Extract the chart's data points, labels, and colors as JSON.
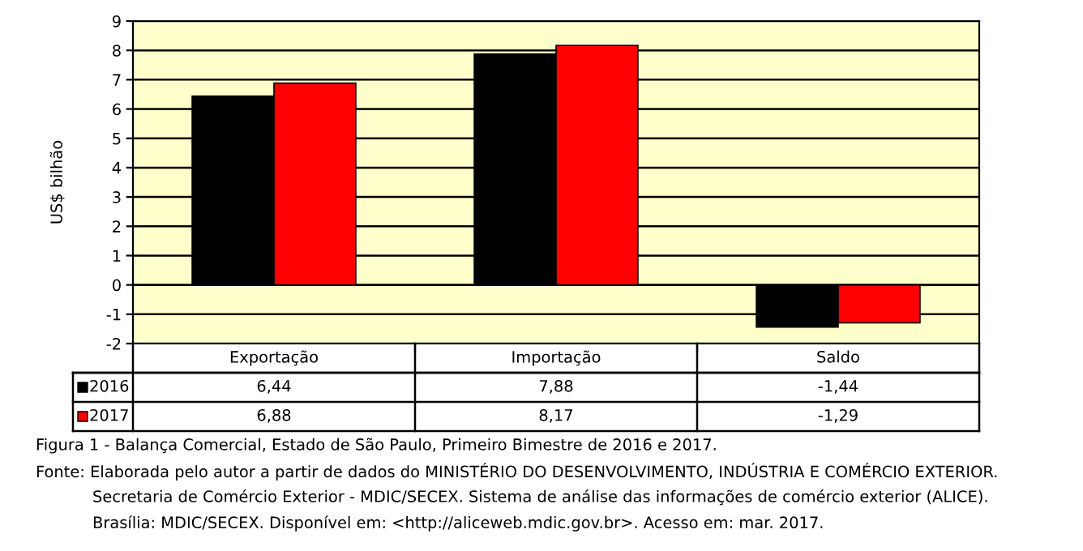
{
  "chart_data": {
    "type": "bar",
    "title": "Figura 1 - Balança Comercial, Estado de São Paulo, Primeiro Bimestre de 2016 e 2017.",
    "ylabel": "US$ bilhão",
    "categories": [
      "Exportação",
      "Importação",
      "Saldo"
    ],
    "series": [
      {
        "name": "2016",
        "color": "#000000",
        "values": [
          6.44,
          7.88,
          -1.44
        ],
        "value_labels": [
          "6,44",
          "7,88",
          "-1,44"
        ]
      },
      {
        "name": "2017",
        "color": "#ff0000",
        "values": [
          6.88,
          8.17,
          -1.29
        ],
        "value_labels": [
          "6,88",
          "8,17",
          "-1,29"
        ]
      }
    ],
    "ylim": [
      -2,
      9
    ],
    "yticks": [
      -2,
      -1,
      0,
      1,
      2,
      3,
      4,
      5,
      6,
      7,
      8,
      9
    ],
    "grid": "y",
    "legend": "bottom left",
    "annotations": [
      "Fonte: Elaborada pelo autor a partir de dados do MINISTÉRIO DO DESENVOLVIMENTO, INDÚSTRIA E COMÉRCIO EXTERIOR.",
      "Secretaria de Comércio Exterior - MDIC/SECEX. Sistema de análise das informações de comércio exterior (ALICE).",
      "Brasília: MDIC/SECEX. Disponível em: <http://aliceweb.mdic.gov.br>. Acesso em: mar. 2017."
    ]
  }
}
